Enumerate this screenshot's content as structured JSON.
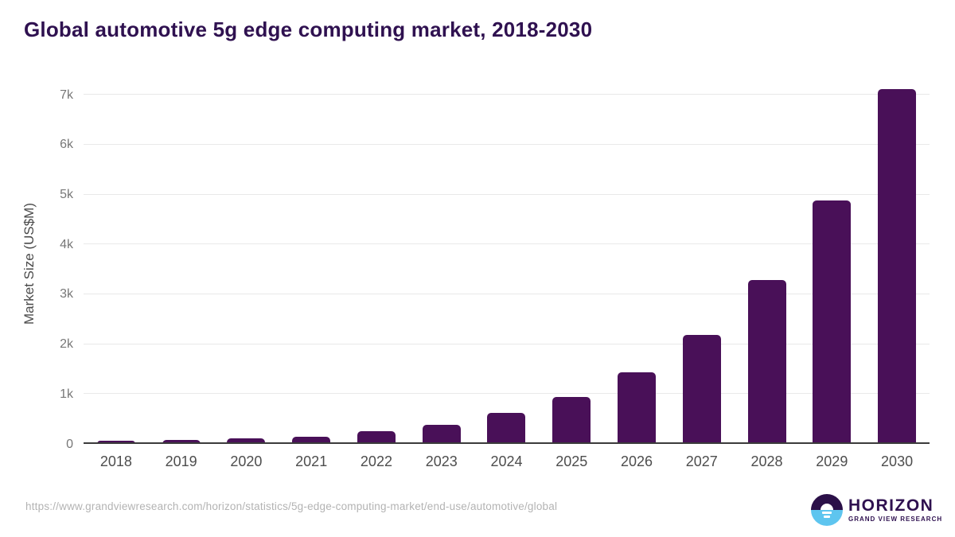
{
  "title": "Global automotive 5g edge computing market, 2018-2030",
  "footer": {
    "source_url": "https://www.grandviewresearch.com/horizon/statistics/5g-edge-computing-market/end-use/automotive/global"
  },
  "logo": {
    "name": "HORIZON",
    "subtitle": "GRAND VIEW RESEARCH"
  },
  "colors": {
    "title": "#2f1150",
    "bar": "#491058",
    "grid": "#e9e9e9",
    "axis": "#3b3b3b",
    "tick": "#777777",
    "xlabel": "#4d4d4d",
    "url": "#b3b3b3",
    "logo_purple": "#2b1048",
    "logo_blue": "#5ec5ef"
  },
  "chart_data": {
    "type": "bar",
    "title": "Global automotive 5g edge computing market, 2018-2030",
    "xlabel": "",
    "ylabel": "Market Size (US$M)",
    "categories": [
      "2018",
      "2019",
      "2020",
      "2021",
      "2022",
      "2023",
      "2024",
      "2025",
      "2026",
      "2027",
      "2028",
      "2029",
      "2030"
    ],
    "values": [
      65,
      85,
      110,
      150,
      250,
      380,
      615,
      940,
      1440,
      2190,
      3290,
      4880,
      7120
    ],
    "ylim": [
      0,
      7200
    ],
    "yticks": [
      {
        "value": 0,
        "label": "0"
      },
      {
        "value": 1000,
        "label": "1k"
      },
      {
        "value": 2000,
        "label": "2k"
      },
      {
        "value": 3000,
        "label": "3k"
      },
      {
        "value": 4000,
        "label": "4k"
      },
      {
        "value": 5000,
        "label": "5k"
      },
      {
        "value": 6000,
        "label": "6k"
      },
      {
        "value": 7000,
        "label": "7k"
      }
    ],
    "grid": "horizontal-only",
    "legend": "none",
    "bar_color": "#491058"
  }
}
